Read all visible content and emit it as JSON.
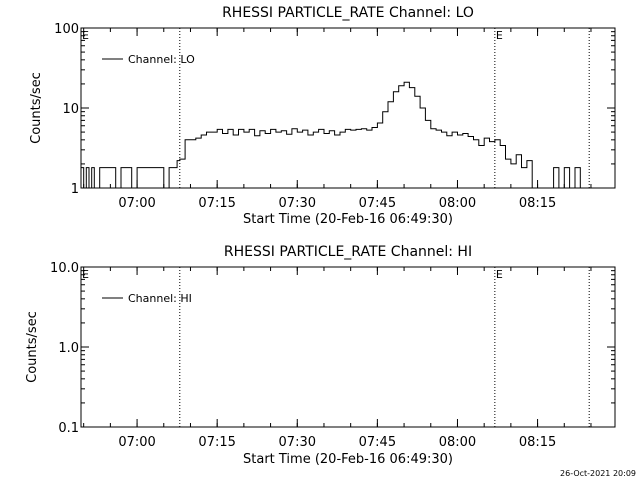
{
  "footer_timestamp": "26-Oct-2021 20:09",
  "chart_data": [
    {
      "type": "line",
      "title": "RHESSI PARTICLE_RATE Channel: LO",
      "xlabel": "Start Time (20-Feb-16 06:49:30)",
      "ylabel": "Counts/sec",
      "y_scale": "log",
      "ylim": [
        1,
        100
      ],
      "y_ticks": [
        1,
        10,
        100
      ],
      "y_tick_labels": [
        "1",
        "10",
        "100"
      ],
      "xlim": [
        "06:49:30",
        "08:29:30"
      ],
      "x_ticks": [
        "07:00",
        "07:15",
        "07:30",
        "07:45",
        "08:00",
        "08:15"
      ],
      "x_tick_labels": [
        "07:00",
        "07:15",
        "07:30",
        "07:45",
        "08:00",
        "08:15"
      ],
      "vertical_markers": [
        {
          "time": "07:08:00",
          "label": ""
        },
        {
          "time": "08:07:00",
          "label": "E"
        },
        {
          "time": "08:24:40",
          "label": ""
        }
      ],
      "corner_marks": [
        "E"
      ],
      "legend": {
        "position": "top-left",
        "entries": [
          "Channel: LO"
        ]
      },
      "series": [
        {
          "name": "Channel: LO",
          "x": [
            "06:49:30",
            "06:50:00",
            "06:50:30",
            "06:51:00",
            "06:51:30",
            "06:52:00",
            "06:53:00",
            "06:54:00",
            "06:55:00",
            "06:56:00",
            "06:57:00",
            "06:58:00",
            "06:59:00",
            "07:00:00",
            "07:01:00",
            "07:02:00",
            "07:03:00",
            "07:04:00",
            "07:05:00",
            "07:06:00",
            "07:07:00",
            "07:07:30",
            "07:08:00",
            "07:09:00",
            "07:10:00",
            "07:11:00",
            "07:12:00",
            "07:13:00",
            "07:14:00",
            "07:15:00",
            "07:16:00",
            "07:17:00",
            "07:18:00",
            "07:19:00",
            "07:20:00",
            "07:21:00",
            "07:22:00",
            "07:23:00",
            "07:24:00",
            "07:25:00",
            "07:26:00",
            "07:27:00",
            "07:28:00",
            "07:29:00",
            "07:30:00",
            "07:31:00",
            "07:32:00",
            "07:33:00",
            "07:34:00",
            "07:35:00",
            "07:36:00",
            "07:37:00",
            "07:38:00",
            "07:39:00",
            "07:40:00",
            "07:41:00",
            "07:42:00",
            "07:43:00",
            "07:44:00",
            "07:45:00",
            "07:46:00",
            "07:47:00",
            "07:48:00",
            "07:49:00",
            "07:50:00",
            "07:51:00",
            "07:52:00",
            "07:53:00",
            "07:54:00",
            "07:55:00",
            "07:56:00",
            "07:57:00",
            "07:58:00",
            "07:59:00",
            "08:00:00",
            "08:01:00",
            "08:02:00",
            "08:03:00",
            "08:04:00",
            "08:05:00",
            "08:06:00",
            "08:07:00",
            "08:08:00",
            "08:09:00",
            "08:10:00",
            "08:11:00",
            "08:12:00",
            "08:13:00",
            "08:14:00",
            "08:15:00",
            "08:16:00",
            "08:17:00",
            "08:18:00",
            "08:19:00",
            "08:20:00",
            "08:21:00",
            "08:22:00",
            "08:23:00",
            "08:24:00",
            "08:24:40"
          ],
          "y": [
            1.8,
            1,
            1.8,
            1,
            1.8,
            1,
            1.8,
            1.8,
            1.8,
            1,
            1.8,
            1.8,
            1,
            1.8,
            1.8,
            1.8,
            1.8,
            1.8,
            1,
            1.8,
            1.8,
            2.2,
            2.3,
            4,
            4,
            4.2,
            4.6,
            5,
            5,
            5.4,
            4.8,
            5.4,
            4.6,
            5.4,
            5,
            5.4,
            4.5,
            5.2,
            4.8,
            5.4,
            5,
            5.2,
            4.7,
            5.5,
            5,
            5.3,
            4.6,
            5,
            5.4,
            4.8,
            5.2,
            4.6,
            5,
            5.4,
            5.3,
            5.4,
            5.5,
            5.3,
            5.7,
            6.5,
            9,
            12,
            16,
            19,
            21,
            18,
            14,
            10,
            7,
            5.5,
            5.3,
            5,
            4.5,
            5,
            4.6,
            4.8,
            4.4,
            4,
            3.4,
            4.2,
            3.8,
            4,
            3.4,
            2.3,
            2,
            2.6,
            1.8,
            2.2,
            1,
            1,
            1,
            1,
            1.8,
            1,
            1.8,
            1,
            1.8,
            1,
            1,
            1
          ]
        }
      ]
    },
    {
      "type": "line",
      "title": "RHESSI PARTICLE_RATE Channel: HI",
      "xlabel": "Start Time (20-Feb-16 06:49:30)",
      "ylabel": "Counts/sec",
      "y_scale": "log",
      "ylim": [
        0.1,
        10
      ],
      "y_ticks": [
        0.1,
        1,
        10
      ],
      "y_tick_labels": [
        "0.1",
        "1.0",
        "10.0"
      ],
      "xlim": [
        "06:49:30",
        "08:29:30"
      ],
      "x_ticks": [
        "07:00",
        "07:15",
        "07:30",
        "07:45",
        "08:00",
        "08:15"
      ],
      "x_tick_labels": [
        "07:00",
        "07:15",
        "07:30",
        "07:45",
        "08:00",
        "08:15"
      ],
      "vertical_markers": [
        {
          "time": "07:08:00",
          "label": ""
        },
        {
          "time": "08:07:00",
          "label": "E"
        },
        {
          "time": "08:24:40",
          "label": ""
        }
      ],
      "corner_marks": [
        "E"
      ],
      "legend": {
        "position": "top-left",
        "entries": [
          "Channel: HI"
        ]
      },
      "series": [
        {
          "name": "Channel: HI",
          "x": [],
          "y": []
        }
      ]
    }
  ]
}
